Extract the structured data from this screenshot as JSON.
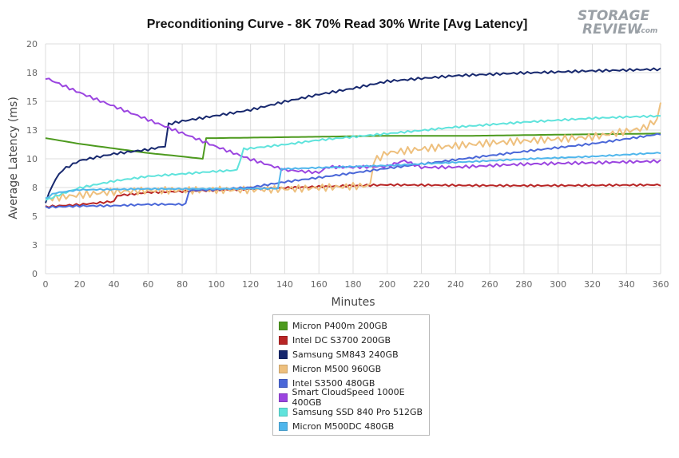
{
  "logo": {
    "line1": "STORAGE",
    "line2": "REVIEW",
    "suffix": ".com"
  },
  "chart_data": {
    "type": "line",
    "title": "Preconditioning Curve - 8K 70% Read 30% Write [Avg Latency]",
    "xlabel": "Minutes",
    "ylabel": "Average Latency (ms)",
    "xlim": [
      0,
      360
    ],
    "ylim": [
      0,
      20
    ],
    "x_ticks": [
      0,
      20,
      40,
      60,
      80,
      100,
      120,
      140,
      160,
      180,
      200,
      220,
      240,
      260,
      280,
      300,
      320,
      340,
      360
    ],
    "y_ticks": [
      0,
      2.5,
      5,
      7.5,
      10,
      12.5,
      15,
      17.5,
      20
    ],
    "y_tick_labels": [
      "0",
      "3",
      "5",
      "8",
      "10",
      "13",
      "15",
      "18",
      "20"
    ],
    "grid": true,
    "legend_position": "bottom",
    "series": [
      {
        "name": "Micron P400m 200GB",
        "color": "#4d9a1e",
        "x": [
          0,
          20,
          40,
          60,
          80,
          92,
          93,
          100,
          150,
          200,
          250,
          300,
          360
        ],
        "y": [
          11.8,
          11.3,
          10.9,
          10.5,
          10.2,
          10.0,
          11.8,
          11.8,
          11.9,
          12.0,
          12.0,
          12.1,
          12.2
        ]
      },
      {
        "name": "Intel DC S3700 200GB",
        "color": "#b82525",
        "x": [
          0,
          20,
          40,
          42,
          60,
          80,
          100,
          150,
          200,
          250,
          300,
          360
        ],
        "y": [
          5.8,
          6.0,
          6.3,
          6.8,
          7.1,
          7.2,
          7.3,
          7.5,
          7.7,
          7.7,
          7.7,
          7.7
        ],
        "noise": 0.12
      },
      {
        "name": "Samsung SM843 240GB",
        "color": "#17286e",
        "x": [
          0,
          5,
          10,
          20,
          40,
          60,
          70,
          71,
          80,
          100,
          120,
          140,
          160,
          180,
          200,
          240,
          280,
          320,
          360
        ],
        "y": [
          6.2,
          8.0,
          9.0,
          9.8,
          10.4,
          10.8,
          11.1,
          13.0,
          13.3,
          13.8,
          14.3,
          15.0,
          15.6,
          16.1,
          16.7,
          17.2,
          17.5,
          17.7,
          17.8
        ],
        "noise": 0.15
      },
      {
        "name": "Micron M500 960GB",
        "color": "#eec07e",
        "x": [
          0,
          40,
          80,
          120,
          140,
          160,
          190,
          192,
          200,
          240,
          280,
          320,
          350,
          358,
          360
        ],
        "y": [
          6.5,
          7.0,
          7.2,
          7.4,
          7.5,
          7.6,
          7.7,
          9.8,
          10.5,
          11.0,
          11.5,
          12.0,
          12.8,
          13.5,
          15.0
        ],
        "noise": 0.45
      },
      {
        "name": "Intel S3500 480GB",
        "color": "#4a67d8",
        "x": [
          0,
          20,
          40,
          60,
          83,
          84,
          100,
          120,
          140,
          160,
          180,
          200,
          240,
          280,
          320,
          360
        ],
        "y": [
          5.8,
          5.9,
          5.9,
          6.0,
          6.0,
          7.2,
          7.3,
          7.5,
          8.0,
          8.4,
          8.8,
          9.2,
          9.9,
          10.6,
          11.3,
          12.2
        ],
        "noise": 0.12
      },
      {
        "name": "Smart CloudSpeed 1000E 400GB",
        "color": "#9b45e0",
        "x": [
          0,
          20,
          40,
          60,
          80,
          100,
          120,
          140,
          160,
          165,
          180,
          200,
          210,
          220,
          240,
          280,
          320,
          360
        ],
        "y": [
          17.1,
          15.8,
          14.6,
          13.4,
          12.2,
          11.0,
          9.9,
          9.0,
          8.8,
          9.3,
          9.3,
          9.4,
          9.9,
          9.3,
          9.3,
          9.5,
          9.6,
          9.8
        ],
        "noise": 0.18
      },
      {
        "name": "Samsung SSD 840 Pro 512GB",
        "color": "#5fe3dc",
        "x": [
          0,
          10,
          20,
          40,
          60,
          80,
          100,
          113,
          115,
          140,
          160,
          200,
          240,
          280,
          320,
          360
        ],
        "y": [
          6.4,
          7.0,
          7.5,
          8.1,
          8.5,
          8.7,
          8.9,
          9.0,
          10.8,
          11.2,
          11.6,
          12.2,
          12.8,
          13.2,
          13.5,
          13.7
        ],
        "noise": 0.12
      },
      {
        "name": "Micron M500DC 480GB",
        "color": "#4fb6ec",
        "x": [
          0,
          5,
          20,
          60,
          100,
          137,
          138,
          160,
          200,
          240,
          280,
          320,
          360
        ],
        "y": [
          6.5,
          7.0,
          7.3,
          7.4,
          7.4,
          7.4,
          9.1,
          9.2,
          9.4,
          9.7,
          10.0,
          10.2,
          10.5
        ],
        "noise": 0.08
      }
    ]
  }
}
